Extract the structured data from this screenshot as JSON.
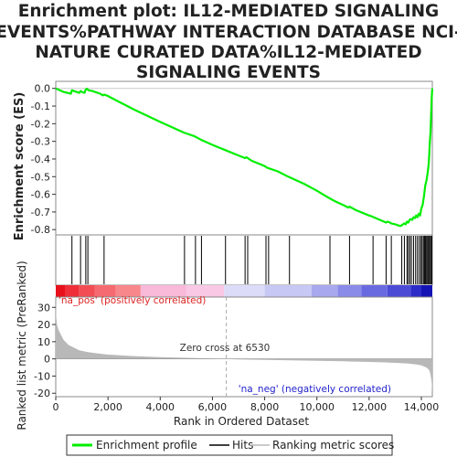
{
  "chart_data": {
    "type": "line",
    "title_lines": [
      "Enrichment plot: IL12-MEDIATED SIGNALING",
      "EVENTS%PATHWAY INTERACTION DATABASE NCI-",
      "NATURE CURATED DATA%IL12-MEDIATED",
      "SIGNALING EVENTS"
    ],
    "es_panel": {
      "ylabel": "Enrichment score (ES)",
      "ylim": [
        -0.83,
        0.04
      ],
      "yticks": [
        0.0,
        -0.1,
        -0.2,
        -0.3,
        -0.4,
        -0.5,
        -0.6,
        -0.7,
        -0.8
      ],
      "ytick_labels": [
        "0.0",
        "-0.1",
        "-0.2",
        "-0.3",
        "-0.4",
        "-0.5",
        "-0.6",
        "-0.7",
        "-0.8"
      ],
      "series": [
        {
          "name": "Enrichment profile",
          "color": "#00ee00",
          "x": [
            0,
            300,
            580,
            620,
            700,
            900,
            950,
            1000,
            1100,
            1150,
            1200,
            1250,
            1400,
            1700,
            1800,
            1850,
            1950,
            3000,
            4000,
            4900,
            5300,
            5550,
            6000,
            6500,
            7000,
            7250,
            7300,
            7500,
            8000,
            8100,
            8500,
            8900,
            9500,
            10000,
            10450,
            10700,
            11000,
            11200,
            11250,
            11500,
            12000,
            12100,
            12500,
            12650,
            12700,
            12800,
            12850,
            13000,
            13100,
            13200,
            13300,
            13350,
            13400,
            13450,
            13500,
            13550,
            13600,
            13650,
            13700,
            13750,
            13800,
            13850,
            13900,
            13950,
            14000,
            14050,
            14100,
            14150,
            14200,
            14250,
            14280,
            14300,
            14320,
            14350,
            14370,
            14390,
            14410,
            14420
          ],
          "y": [
            0.0,
            -0.02,
            -0.03,
            -0.01,
            -0.015,
            -0.025,
            -0.015,
            -0.02,
            -0.025,
            -0.005,
            -0.002,
            -0.01,
            -0.015,
            -0.03,
            -0.04,
            -0.035,
            -0.04,
            -0.12,
            -0.19,
            -0.25,
            -0.27,
            -0.29,
            -0.32,
            -0.35,
            -0.38,
            -0.395,
            -0.39,
            -0.41,
            -0.44,
            -0.45,
            -0.47,
            -0.5,
            -0.54,
            -0.58,
            -0.62,
            -0.64,
            -0.66,
            -0.675,
            -0.67,
            -0.69,
            -0.72,
            -0.725,
            -0.75,
            -0.76,
            -0.755,
            -0.76,
            -0.765,
            -0.77,
            -0.775,
            -0.78,
            -0.77,
            -0.765,
            -0.77,
            -0.755,
            -0.76,
            -0.745,
            -0.74,
            -0.745,
            -0.73,
            -0.735,
            -0.72,
            -0.73,
            -0.71,
            -0.72,
            -0.68,
            -0.66,
            -0.61,
            -0.55,
            -0.52,
            -0.47,
            -0.43,
            -0.38,
            -0.32,
            -0.25,
            -0.16,
            -0.08,
            -0.02,
            0.0
          ]
        }
      ]
    },
    "hits_panel": {
      "series_name": "Hits",
      "hit_positions": [
        620,
        950,
        1150,
        1230,
        1850,
        4930,
        5350,
        5580,
        6500,
        7250,
        7350,
        8050,
        8150,
        8950,
        10500,
        11250,
        12150,
        12650,
        12850,
        13250,
        13350,
        13450,
        13500,
        13560,
        13620,
        13700,
        13780,
        13850,
        13920,
        13980,
        14030,
        14080,
        14120,
        14160,
        14200,
        14240,
        14280,
        14320,
        14360,
        14400
      ]
    },
    "rank_bar": {
      "segments": [
        {
          "x0": 0,
          "x1": 350,
          "color": "#e8101c"
        },
        {
          "x0": 350,
          "x1": 900,
          "color": "#ee2e38"
        },
        {
          "x0": 900,
          "x1": 1500,
          "color": "#f24d55"
        },
        {
          "x0": 1500,
          "x1": 2300,
          "color": "#f56a70"
        },
        {
          "x0": 2300,
          "x1": 3250,
          "color": "#f8878c"
        },
        {
          "x0": 3250,
          "x1": 5000,
          "color": "#f8b8d8"
        },
        {
          "x0": 5000,
          "x1": 6450,
          "color": "#f8c8e4"
        },
        {
          "x0": 6450,
          "x1": 8000,
          "color": "#dcdcf8"
        },
        {
          "x0": 8000,
          "x1": 9800,
          "color": "#c8c8f4"
        },
        {
          "x0": 9800,
          "x1": 10800,
          "color": "#a8a8ee"
        },
        {
          "x0": 10800,
          "x1": 11700,
          "color": "#8a8ae8"
        },
        {
          "x0": 11700,
          "x1": 12700,
          "color": "#6a6ae0"
        },
        {
          "x0": 12700,
          "x1": 13600,
          "color": "#4b4bd6"
        },
        {
          "x0": 13600,
          "x1": 14000,
          "color": "#2c2cc8"
        },
        {
          "x0": 14000,
          "x1": 14420,
          "color": "#1414b4"
        }
      ]
    },
    "metric_panel": {
      "ylabel": "Ranked list metric (PreRanked)",
      "ylim": [
        -22,
        36
      ],
      "yticks": [
        30,
        20,
        10,
        0,
        -10,
        -20
      ],
      "ytick_labels": [
        "30",
        "20",
        "10",
        "0",
        "-10",
        "-20"
      ],
      "x": [
        0,
        20,
        50,
        100,
        200,
        300,
        400,
        500,
        700,
        900,
        1200,
        1600,
        2000,
        3000,
        4000,
        5000,
        6000,
        6530,
        7000,
        8000,
        9000,
        10000,
        11000,
        12000,
        12500,
        13000,
        13500,
        13800,
        14000,
        14200,
        14300,
        14350,
        14400,
        14420
      ],
      "values": [
        36,
        24,
        20,
        17,
        14,
        11,
        9.5,
        8,
        6.5,
        5,
        4,
        3.2,
        2.5,
        1.6,
        1.0,
        0.6,
        0.2,
        0,
        -0.3,
        -0.6,
        -0.9,
        -1.1,
        -1.4,
        -1.8,
        -2.0,
        -2.3,
        -2.7,
        -3.2,
        -3.8,
        -5.0,
        -6.5,
        -9,
        -14,
        -20
      ],
      "fill_color": "#b8b8b8",
      "zero_cross_x": 6530,
      "zero_cross_label": "Zero cross at 6530",
      "pos_label": "'na_pos' (positively correlated)",
      "neg_label": "'na_neg' (negatively correlated)",
      "pos_color": "#dd2222",
      "neg_color": "#2222cc"
    },
    "xaxis": {
      "label": "Rank in Ordered Dataset",
      "xlim": [
        0,
        14420
      ],
      "ticks": [
        0,
        2000,
        4000,
        6000,
        8000,
        10000,
        12000,
        14000
      ],
      "tick_labels": [
        "0",
        "2,000",
        "4,000",
        "6,000",
        "8,000",
        "10,000",
        "12,000",
        "14,000"
      ]
    },
    "legend": {
      "placement": "bottom",
      "items": [
        {
          "label": "Enrichment profile",
          "color": "#00ee00",
          "style": "line"
        },
        {
          "label": "Hits",
          "color": "#000000",
          "style": "line"
        },
        {
          "label": "Ranking metric scores",
          "color": "#b8b8b8",
          "style": "line"
        }
      ]
    }
  }
}
